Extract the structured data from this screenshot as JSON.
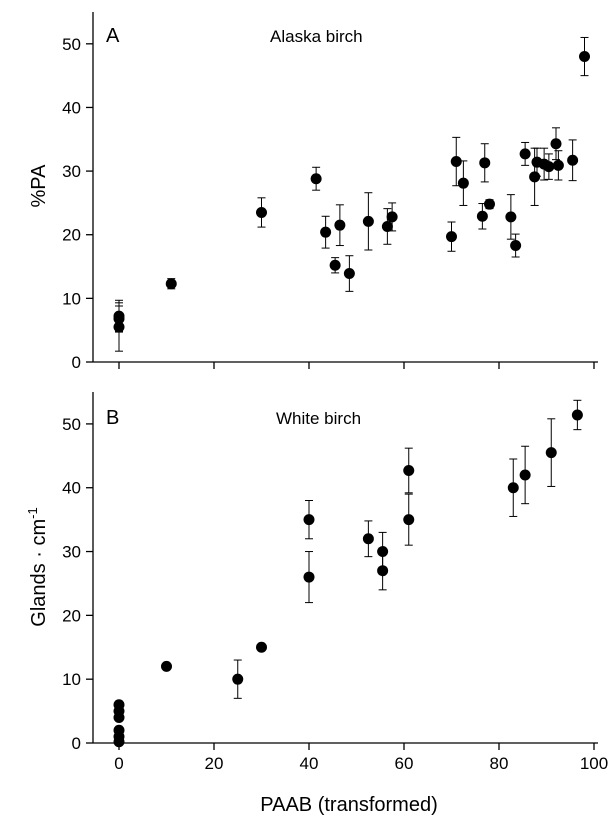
{
  "chart_data": [
    {
      "type": "scatter",
      "panel_label": "A",
      "title": "Alaska birch",
      "xlabel": "",
      "ylabel": "%PA",
      "xlim": [
        0,
        100
      ],
      "ylim": [
        0,
        55
      ],
      "xticks": [
        0,
        20,
        40,
        60,
        80,
        100
      ],
      "yticks": [
        0,
        10,
        20,
        30,
        40,
        50
      ],
      "show_x_tick_labels": false,
      "grid": false,
      "legend": "none",
      "points": [
        {
          "x": 0,
          "y": 7.2,
          "err": 2.5
        },
        {
          "x": 0,
          "y": 6.8,
          "err": 2.0
        },
        {
          "x": 0,
          "y": 5.5,
          "err": 3.8
        },
        {
          "x": 11,
          "y": 12.3,
          "err": 0.8
        },
        {
          "x": 30,
          "y": 23.5,
          "err": 2.3
        },
        {
          "x": 41.5,
          "y": 28.8,
          "err": 1.8
        },
        {
          "x": 43.5,
          "y": 20.4,
          "err": 2.5
        },
        {
          "x": 45.5,
          "y": 15.2,
          "err": 1.2
        },
        {
          "x": 46.5,
          "y": 21.5,
          "err": 3.2
        },
        {
          "x": 48.5,
          "y": 13.9,
          "err": 2.8
        },
        {
          "x": 52.5,
          "y": 22.1,
          "err": 4.5
        },
        {
          "x": 56.5,
          "y": 21.3,
          "err": 2.8
        },
        {
          "x": 57.5,
          "y": 22.8,
          "err": 2.2
        },
        {
          "x": 70,
          "y": 19.7,
          "err": 2.3
        },
        {
          "x": 71,
          "y": 31.5,
          "err": 3.8
        },
        {
          "x": 72.5,
          "y": 28.1,
          "err": 3.5
        },
        {
          "x": 76.5,
          "y": 22.9,
          "err": 2.0
        },
        {
          "x": 77,
          "y": 31.3,
          "err": 3.0
        },
        {
          "x": 78,
          "y": 24.8,
          "err": 0.7
        },
        {
          "x": 82.5,
          "y": 22.8,
          "err": 3.5
        },
        {
          "x": 83.5,
          "y": 18.3,
          "err": 1.8
        },
        {
          "x": 85.5,
          "y": 32.7,
          "err": 1.8
        },
        {
          "x": 87.5,
          "y": 29.1,
          "err": 4.5
        },
        {
          "x": 88,
          "y": 31.4,
          "err": 2.2
        },
        {
          "x": 89.5,
          "y": 31.1,
          "err": 2.5
        },
        {
          "x": 90.5,
          "y": 30.7,
          "err": 2.0
        },
        {
          "x": 92,
          "y": 34.3,
          "err": 2.5
        },
        {
          "x": 92.5,
          "y": 30.9,
          "err": 2.3
        },
        {
          "x": 95.5,
          "y": 31.7,
          "err": 3.2
        },
        {
          "x": 98,
          "y": 48.0,
          "err": 3.0
        }
      ]
    },
    {
      "type": "scatter",
      "panel_label": "B",
      "title": "White birch",
      "xlabel": "PAAB (transformed)",
      "ylabel": "Glands",
      "ylabel_unit": "cm",
      "ylabel_exponent": "-1",
      "xlim": [
        0,
        100
      ],
      "ylim": [
        0,
        55
      ],
      "xticks": [
        0,
        20,
        40,
        60,
        80,
        100
      ],
      "yticks": [
        0,
        10,
        20,
        30,
        40,
        50
      ],
      "show_x_tick_labels": true,
      "grid": false,
      "legend": "none",
      "points": [
        {
          "x": 0,
          "y": 6.0,
          "err": 0
        },
        {
          "x": 0,
          "y": 5.0,
          "err": 0
        },
        {
          "x": 0,
          "y": 4.0,
          "err": 0
        },
        {
          "x": 0,
          "y": 2.0,
          "err": 0
        },
        {
          "x": 0,
          "y": 1.0,
          "err": 0
        },
        {
          "x": 0,
          "y": 0.2,
          "err": 0
        },
        {
          "x": 10,
          "y": 12.0,
          "err": 0
        },
        {
          "x": 25,
          "y": 10.0,
          "err": 3.0
        },
        {
          "x": 30,
          "y": 15.0,
          "err": 0
        },
        {
          "x": 40,
          "y": 35.0,
          "err": 3.0
        },
        {
          "x": 40,
          "y": 26.0,
          "err": 4.0
        },
        {
          "x": 52.5,
          "y": 32.0,
          "err": 2.8
        },
        {
          "x": 55.5,
          "y": 30.0,
          "err": 3.0
        },
        {
          "x": 55.5,
          "y": 27.0,
          "err": 3.0
        },
        {
          "x": 61,
          "y": 42.7,
          "err": 3.5
        },
        {
          "x": 61,
          "y": 35.0,
          "err": 4.0
        },
        {
          "x": 83,
          "y": 40.0,
          "err": 4.5
        },
        {
          "x": 85.5,
          "y": 42.0,
          "err": 4.5
        },
        {
          "x": 91,
          "y": 45.5,
          "err": 5.3
        },
        {
          "x": 96.5,
          "y": 51.4,
          "err": 2.3
        }
      ]
    }
  ]
}
